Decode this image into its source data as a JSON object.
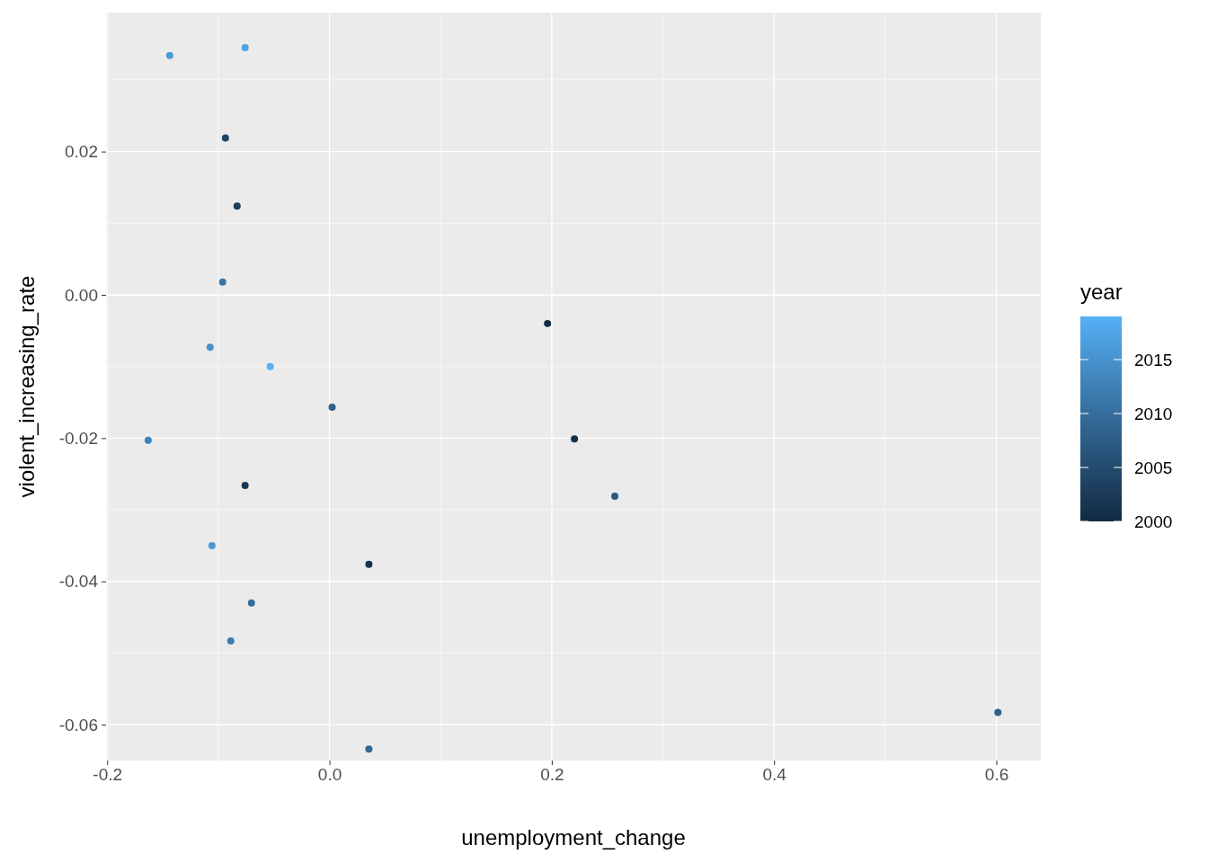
{
  "chart_data": {
    "type": "scatter",
    "xlabel": "unemployment_change",
    "ylabel": "violent_increasing_rate",
    "clabel": "year",
    "x": [
      -0.1437,
      -0.0759,
      -0.0936,
      -0.0831,
      -0.0961,
      -0.1074,
      -0.0533,
      0.0024,
      -0.1631,
      -0.0759,
      -0.1057,
      0.0355,
      -0.0702,
      -0.0888,
      0.0355,
      0.1962,
      0.2204,
      0.2567,
      0.6014
    ],
    "values": [
      0.0334,
      0.0345,
      0.0219,
      0.0124,
      0.0018,
      -0.0073,
      -0.01,
      -0.0157,
      -0.0203,
      -0.0266,
      -0.035,
      -0.0376,
      -0.043,
      -0.0483,
      -0.0634,
      -0.004,
      -0.0201,
      -0.0281,
      -0.0583
    ],
    "cvalues": [
      2016,
      2017,
      2004,
      2003,
      2011,
      2015,
      2019,
      2008,
      2013,
      2002,
      2016,
      2001,
      2010,
      2012,
      2009,
      2000,
      2001,
      2007,
      2008
    ],
    "clim": [
      2000,
      2019
    ],
    "cticks": [
      2000,
      2005,
      2010,
      2015
    ],
    "xlim": [
      -0.201,
      0.64
    ],
    "ylim": [
      -0.065,
      0.0394
    ],
    "xticks": [
      {
        "value": -0.2,
        "label": "-0.2"
      },
      {
        "value": 0,
        "label": "0.0"
      },
      {
        "value": 0.2,
        "label": "0.2"
      },
      {
        "value": 0.4,
        "label": "0.4"
      },
      {
        "value": 0.6,
        "label": "0.6"
      }
    ],
    "yticks": [
      {
        "value": -0.06,
        "label": "-0.06"
      },
      {
        "value": -0.04,
        "label": "-0.04"
      },
      {
        "value": -0.02,
        "label": "-0.02"
      },
      {
        "value": 0,
        "label": "0.00"
      },
      {
        "value": 0.02,
        "label": "0.02"
      }
    ],
    "grid": true,
    "marker": "circle"
  }
}
